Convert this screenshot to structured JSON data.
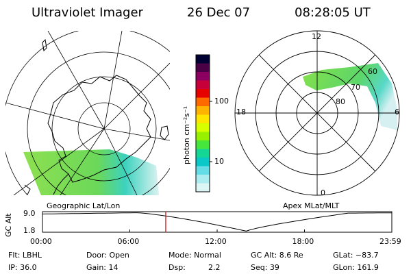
{
  "header": {
    "title": "Ultraviolet Imager",
    "date": "26 Dec 07",
    "time": "08:28:05 UT"
  },
  "left_panel": {
    "caption": "Geographic Lat/Lon"
  },
  "right_panel": {
    "caption": "Apex MLat/MLT",
    "mlt_labels": {
      "top": "12",
      "left": "18",
      "right": "6",
      "bottom": "0"
    },
    "lat_labels": [
      "60",
      "70",
      "80"
    ]
  },
  "colorbar": {
    "title": "photon cm^-2 s^-1",
    "title_display": "photon cm⁻²s⁻¹",
    "ticks": [
      "100",
      "10"
    ],
    "scale": "log",
    "colors": [
      "#000033",
      "#4b0046",
      "#8b0060",
      "#c8003a",
      "#e60000",
      "#ff6a00",
      "#ffb400",
      "#ffe600",
      "#d8ff00",
      "#96f000",
      "#46e63c",
      "#14d796",
      "#0ac8c8",
      "#64dce6",
      "#aaecf0",
      "#dcf5f5"
    ]
  },
  "alt_plot": {
    "ylabel": "GC Alt",
    "ytick_top": "9.0",
    "ytick_bottom": "1.8",
    "xticks": [
      "00:00",
      "06:00",
      "12:00",
      "18:00",
      "23:59"
    ],
    "current_time_hours": 8.468,
    "marker_color": "#e00000"
  },
  "info": {
    "row1": {
      "flt": "Flt: LBHL",
      "door": "Door: Open",
      "mode": "Mode: Normal",
      "gcalt": "GC Alt: 8.6 Re",
      "glat": "GLat: −83.7"
    },
    "row2": {
      "ip": "IP: 36.0",
      "gain": "Gain: 14",
      "dsp_label": "Dsp:",
      "dsp_value": "2.2",
      "seq": "Seq: 39",
      "glon": "GLon: 161.9"
    }
  },
  "colors": {
    "aurora_green": "#7ddc3c",
    "aurora_cyan": "#3cd7b4",
    "aurora_pale": "#d2eef0"
  }
}
